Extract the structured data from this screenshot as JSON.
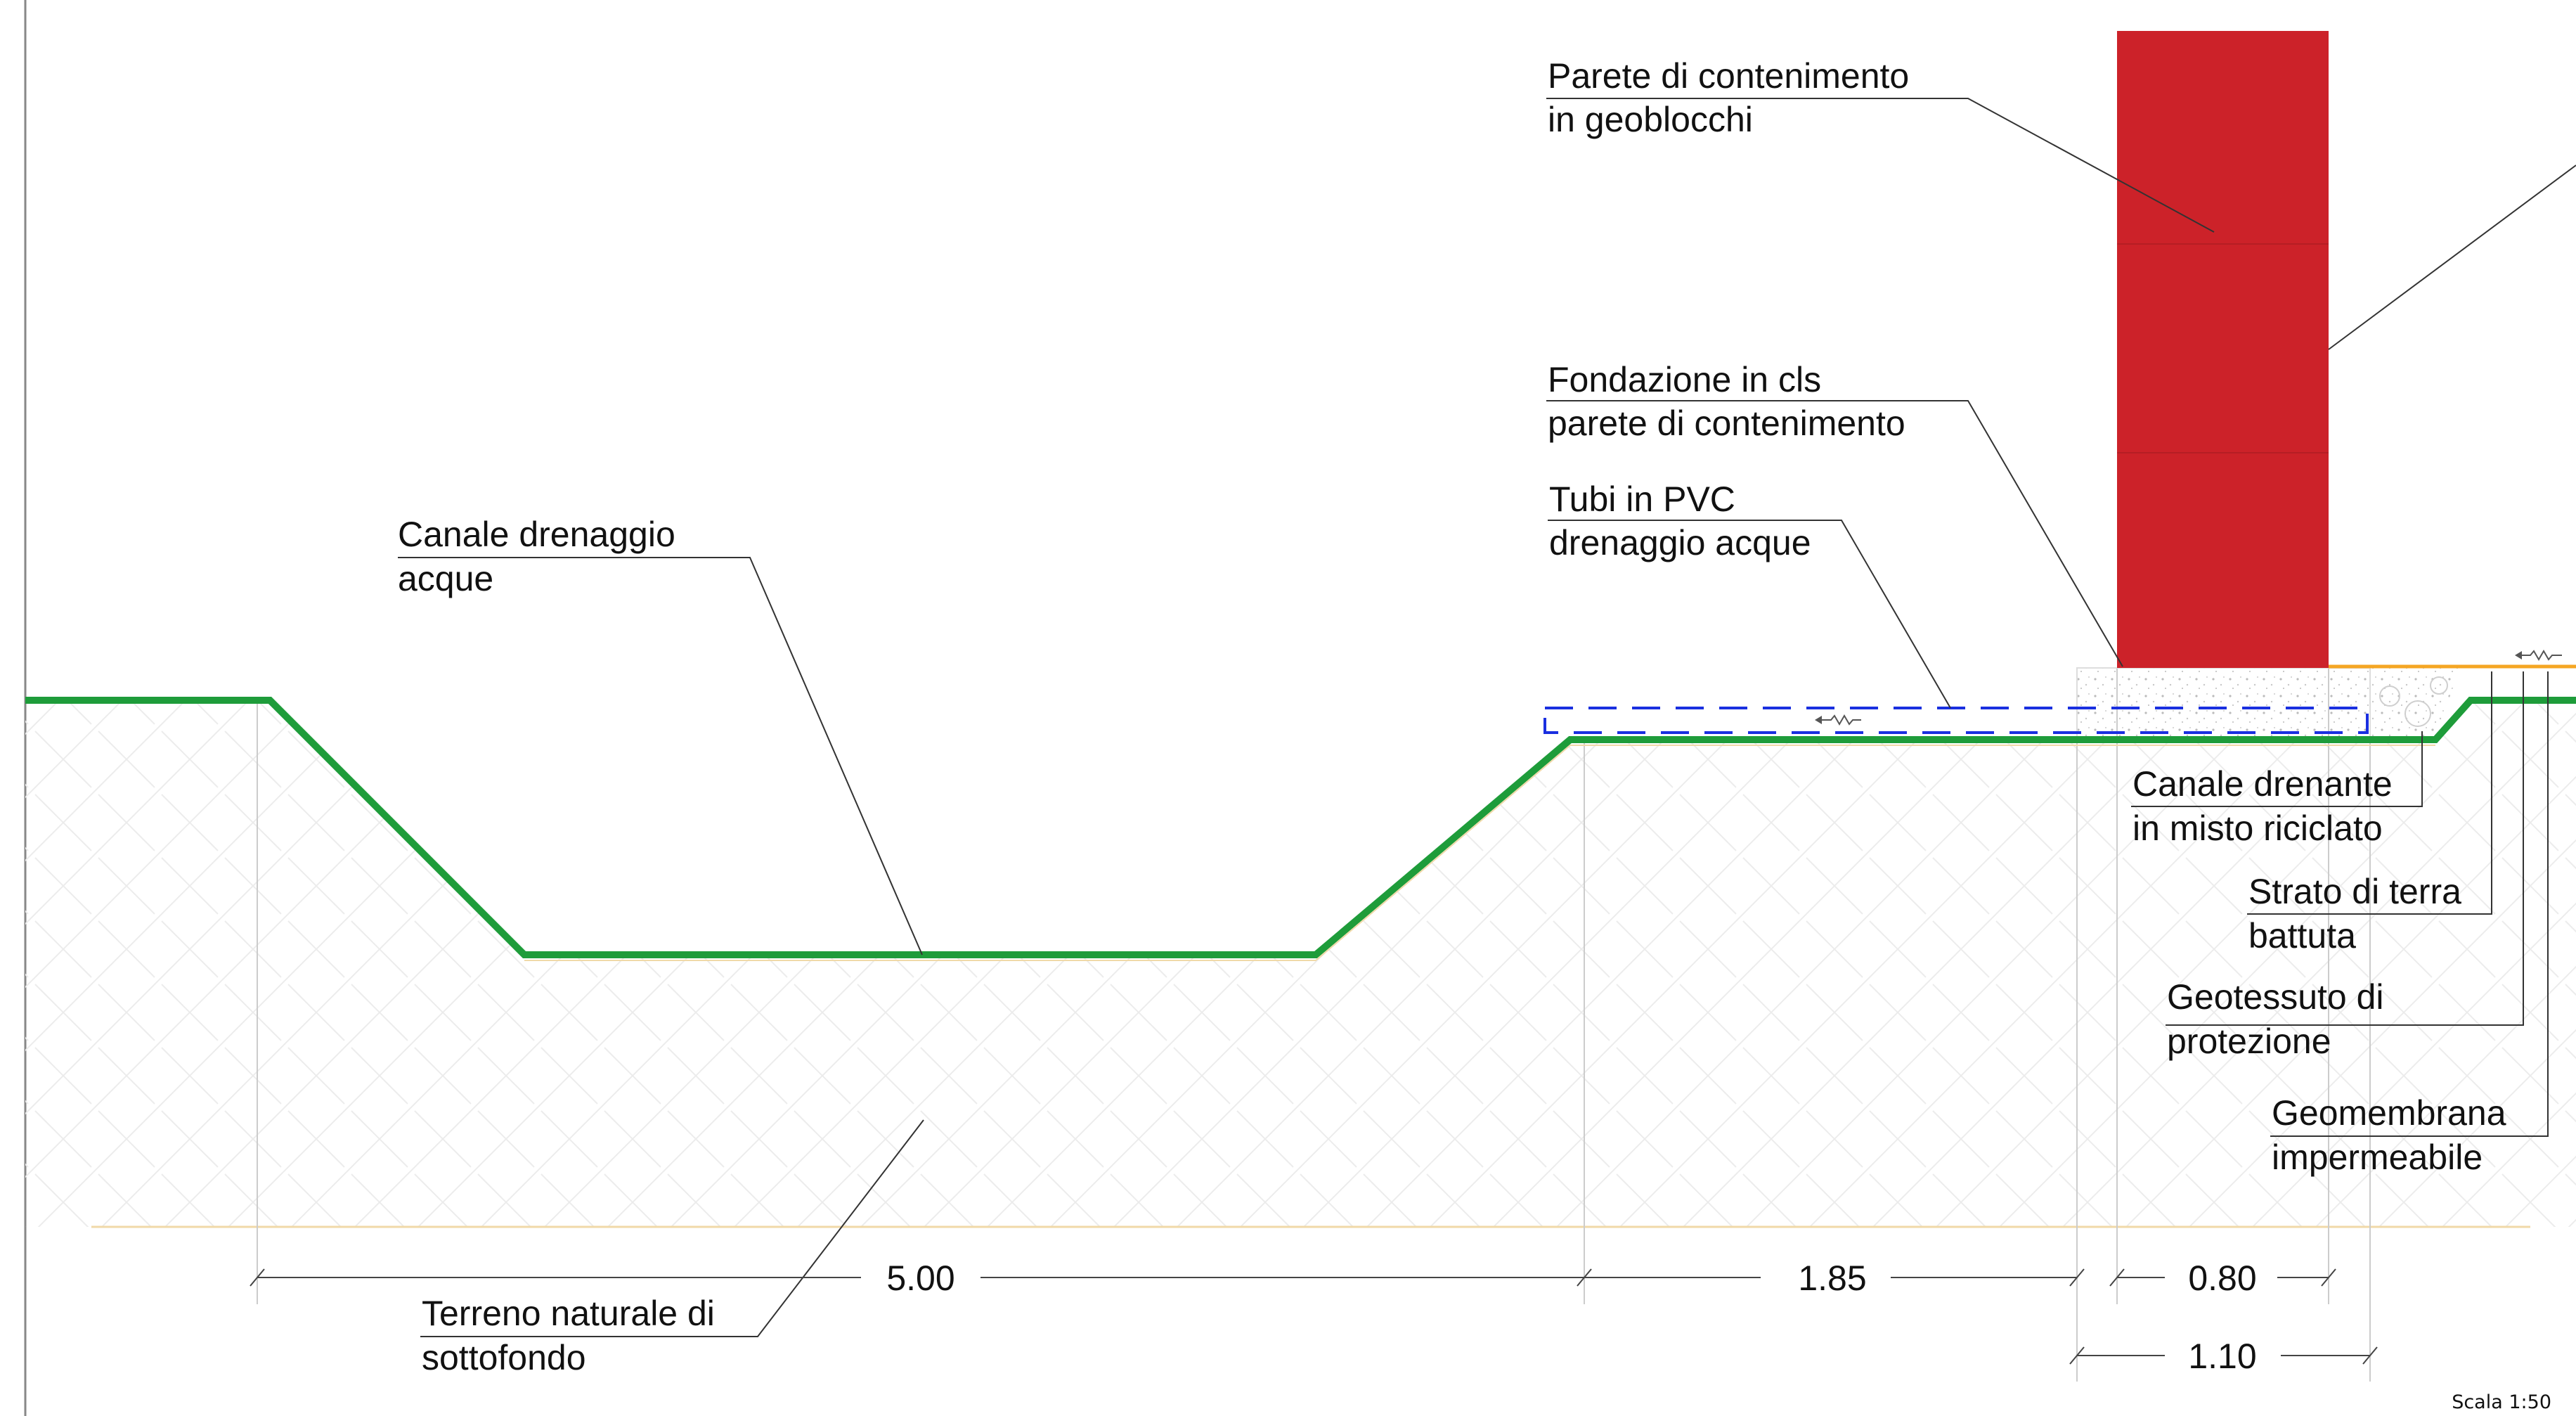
{
  "labels": {
    "wall": [
      "Parete di contenimento",
      "in geoblocchi"
    ],
    "foundation": [
      "Fondazione in cls",
      "parete di contenimento"
    ],
    "pvc": [
      "Tubi in PVC",
      "drenaggio acque"
    ],
    "channel": [
      "Canale drenaggio",
      "acque"
    ],
    "drain_gravel": [
      "Canale drenante",
      "in misto riciclato"
    ],
    "compacted_soil": [
      "Strato di terra",
      "battuta"
    ],
    "geotextile": [
      "Geotessuto di",
      "protezione"
    ],
    "geomembrane": [
      "Geomembrana",
      "impermeabile"
    ],
    "subsoil": [
      "Terreno naturale di",
      "sottofondo"
    ]
  },
  "dimensions": {
    "d1": "5.00",
    "d2": "1.85",
    "d3": "0.80",
    "d4": "1.10"
  },
  "scale": "Scala 1:50",
  "colors": {
    "wall": "#cc2229",
    "ground": "#1e9c3a",
    "geomembrane": "#f5a623",
    "pvc": "#1a2fe0",
    "hatch": "#ececec",
    "baseline": "#f0d9a8"
  }
}
